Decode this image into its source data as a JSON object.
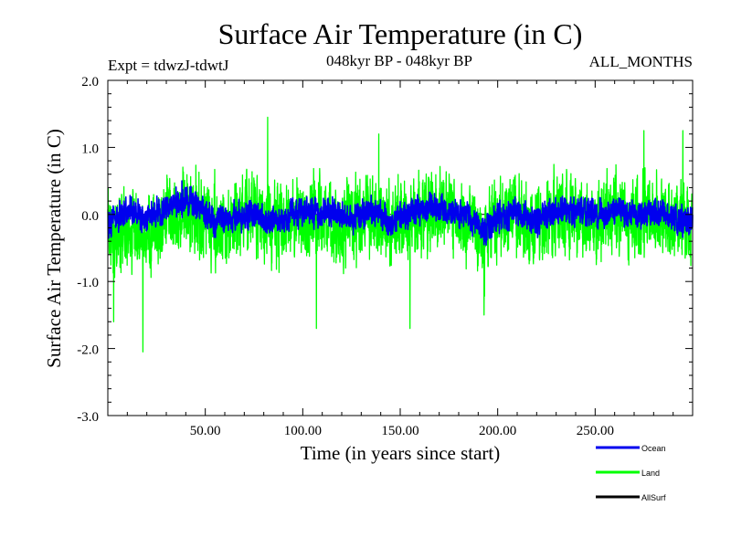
{
  "chart_data": {
    "type": "line",
    "title": "Surface Air Temperature (in C)",
    "subtitle_left": "Expt = tdwzJ-tdwtJ",
    "subtitle_center": "048kyr BP - 048kyr BP",
    "subtitle_right": "ALL_MONTHS",
    "xlabel": "Time (in years since start)",
    "ylabel": "Surface Air Temperature (in C)",
    "xlim": [
      0,
      300
    ],
    "ylim": [
      -3.0,
      2.0
    ],
    "x_ticks": [
      50,
      100,
      150,
      200,
      250
    ],
    "x_tick_labels": [
      "50.00",
      "100.00",
      "150.00",
      "200.00",
      "250.00"
    ],
    "y_ticks": [
      -3.0,
      -2.0,
      -1.0,
      0.0,
      1.0,
      2.0
    ],
    "y_tick_labels": [
      "-3.0",
      "-2.0",
      "-1.0",
      "0.0",
      "1.0",
      "2.0"
    ],
    "grid": false,
    "legend_position": "bottom-right",
    "samples_per_year": 12,
    "series": [
      {
        "name": "Ocean",
        "color": "#0000ee",
        "anchors_x": [
          0,
          10,
          20,
          30,
          38,
          45,
          55,
          65,
          75,
          85,
          95,
          105,
          115,
          125,
          135,
          145,
          155,
          165,
          175,
          185,
          193,
          200,
          210,
          220,
          230,
          240,
          250,
          260,
          270,
          280,
          290,
          300
        ],
        "anchors_y": [
          -0.15,
          0.05,
          -0.05,
          0.1,
          0.2,
          0.15,
          -0.1,
          -0.05,
          0.0,
          -0.1,
          0.0,
          0.05,
          0.0,
          -0.05,
          0.05,
          -0.1,
          0.0,
          0.1,
          0.05,
          -0.05,
          -0.25,
          0.0,
          0.05,
          -0.1,
          0.05,
          0.05,
          0.0,
          0.05,
          0.0,
          0.05,
          -0.05,
          -0.1
        ],
        "noise_amplitude": 0.16,
        "extremes": [
          {
            "x": 38,
            "y": 0.5
          },
          {
            "x": 193,
            "y": -0.45
          }
        ]
      },
      {
        "name": "Land",
        "color": "#00ff00",
        "anchors_x": [
          0,
          10,
          20,
          30,
          38,
          45,
          55,
          65,
          75,
          85,
          95,
          105,
          115,
          125,
          135,
          145,
          155,
          165,
          175,
          185,
          193,
          200,
          210,
          220,
          230,
          240,
          250,
          260,
          270,
          280,
          290,
          300
        ],
        "anchors_y": [
          -0.3,
          -0.2,
          -0.35,
          -0.05,
          0.1,
          0.05,
          -0.15,
          -0.1,
          0.0,
          -0.2,
          -0.05,
          -0.05,
          -0.1,
          -0.15,
          0.0,
          -0.2,
          -0.05,
          0.1,
          0.0,
          -0.1,
          -0.4,
          -0.1,
          0.0,
          -0.15,
          0.05,
          0.0,
          -0.1,
          0.05,
          -0.1,
          0.0,
          -0.05,
          -0.15
        ],
        "noise_amplitude": 0.45,
        "extremes": [
          {
            "x": 3,
            "y": -1.6
          },
          {
            "x": 18,
            "y": -2.05
          },
          {
            "x": 82,
            "y": 1.45
          },
          {
            "x": 107,
            "y": -1.7
          },
          {
            "x": 139,
            "y": 1.2
          },
          {
            "x": 155,
            "y": -1.7
          },
          {
            "x": 193,
            "y": -1.5
          },
          {
            "x": 275,
            "y": 1.25
          },
          {
            "x": 295,
            "y": 1.25
          }
        ]
      },
      {
        "name": "AllSurf",
        "color": "#000000",
        "values": []
      }
    ]
  }
}
